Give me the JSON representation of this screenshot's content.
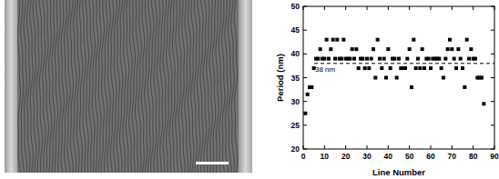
{
  "chart_data": {
    "type": "scatter",
    "x_label": "Line Number",
    "y_label": "Period (nm)",
    "x": [
      1,
      2,
      3,
      4,
      5,
      6,
      7,
      8,
      9,
      10,
      11,
      12,
      13,
      14,
      15,
      16,
      17,
      18,
      19,
      20,
      21,
      22,
      23,
      24,
      25,
      26,
      27,
      28,
      29,
      30,
      31,
      32,
      33,
      34,
      35,
      36,
      37,
      38,
      39,
      40,
      41,
      42,
      43,
      44,
      45,
      46,
      47,
      48,
      49,
      50,
      51,
      52,
      53,
      54,
      55,
      56,
      57,
      58,
      59,
      60,
      61,
      62,
      63,
      64,
      65,
      66,
      67,
      68,
      69,
      70,
      71,
      72,
      73,
      74,
      75,
      76,
      77,
      78,
      79,
      80,
      81,
      82,
      83,
      84,
      85
    ],
    "values": [
      27.5,
      31.5,
      33,
      33,
      37,
      39,
      39,
      41,
      39,
      39,
      43,
      39,
      41,
      43,
      39,
      43,
      39,
      39,
      43,
      39,
      39,
      39,
      41,
      39,
      41,
      37,
      39,
      39,
      37,
      39,
      37,
      39,
      41,
      35,
      43,
      39,
      37,
      39,
      35,
      41,
      37,
      39,
      39,
      35,
      39,
      37,
      37,
      37,
      39,
      41,
      33,
      43,
      37,
      39,
      37,
      41,
      37,
      39,
      39,
      37,
      39,
      39,
      39,
      39,
      37,
      35,
      39,
      41,
      43,
      41,
      39,
      37,
      41,
      39,
      37,
      33,
      43,
      39,
      41,
      39,
      39,
      35,
      35,
      35,
      29.5
    ],
    "color": "#000000",
    "marker": "square",
    "xlim": [
      0,
      90
    ],
    "xticks": [
      0,
      10,
      20,
      30,
      40,
      50,
      60,
      70,
      80,
      90
    ],
    "ylim": [
      20,
      50
    ],
    "yticks": [
      20,
      25,
      30,
      35,
      40,
      45,
      50
    ],
    "reference_line": {
      "value": 38,
      "label": "38 nm",
      "line_style": "dashed"
    }
  }
}
